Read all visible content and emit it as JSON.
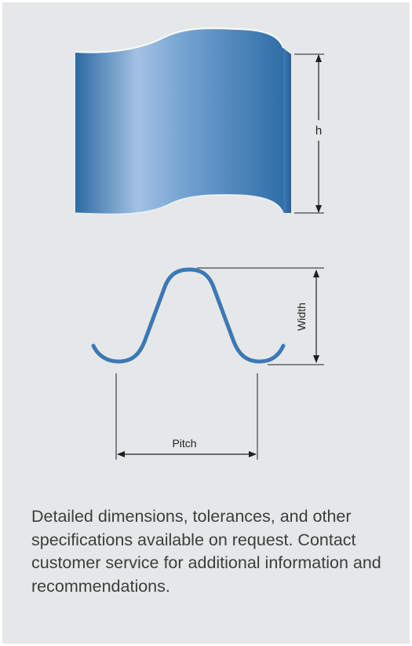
{
  "diagram": {
    "labels": {
      "height": "h",
      "width": "Width",
      "pitch": "Pitch"
    },
    "colors": {
      "sheet_dark": "#2f6ea6",
      "sheet_light": "#a3c2e3",
      "profile_stroke": "#3b78b5",
      "dimension_line": "#1f1f1f",
      "background": "#e6e7e8"
    }
  },
  "note": {
    "text": "Detailed dimensions, tolerances, and other specifications available on request. Contact customer service for additional information and recommendations."
  }
}
